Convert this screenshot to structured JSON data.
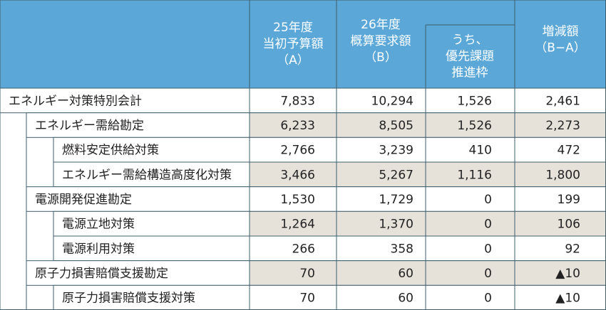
{
  "header": {
    "columns": [
      {
        "lines": [
          "25年度",
          "当初予算額",
          "（A）"
        ]
      },
      {
        "lines": [
          "26年度",
          "概算要求額",
          "（B）"
        ]
      },
      {
        "lines": [
          "うち、",
          "優先課題",
          "推進枠"
        ]
      },
      {
        "lines": [
          "増減額",
          "（B−A）"
        ]
      }
    ]
  },
  "table": {
    "rows": [
      {
        "label": "エネルギー対策特別会計",
        "level": 0,
        "cells": [
          "7,833",
          "10,294",
          "1,526",
          "2,461"
        ]
      },
      {
        "label": "エネルギー需給勘定",
        "level": 1,
        "cells": [
          "6,233",
          "8,505",
          "1,526",
          "2,273"
        ]
      },
      {
        "label": "燃料安定供給対策",
        "level": 2,
        "cells": [
          "2,766",
          "3,239",
          "410",
          "472"
        ]
      },
      {
        "label": "エネルギー需給構造高度化対策",
        "level": 2,
        "cells": [
          "3,466",
          "5,267",
          "1,116",
          "1,800"
        ]
      },
      {
        "label": "電源開発促進勘定",
        "level": 1,
        "cells": [
          "1,530",
          "1,729",
          "0",
          "199"
        ]
      },
      {
        "label": "電源立地対策",
        "level": 2,
        "cells": [
          "1,264",
          "1,370",
          "0",
          "106"
        ]
      },
      {
        "label": "電源利用対策",
        "level": 2,
        "cells": [
          "266",
          "358",
          "0",
          "92"
        ]
      },
      {
        "label": "原子力損害賠償支援勘定",
        "level": 1,
        "cells": [
          "70",
          "60",
          "0",
          "▲10"
        ]
      },
      {
        "label": "原子力損害賠償支援対策",
        "level": 2,
        "cells": [
          "70",
          "60",
          "0",
          "▲10"
        ]
      }
    ]
  }
}
